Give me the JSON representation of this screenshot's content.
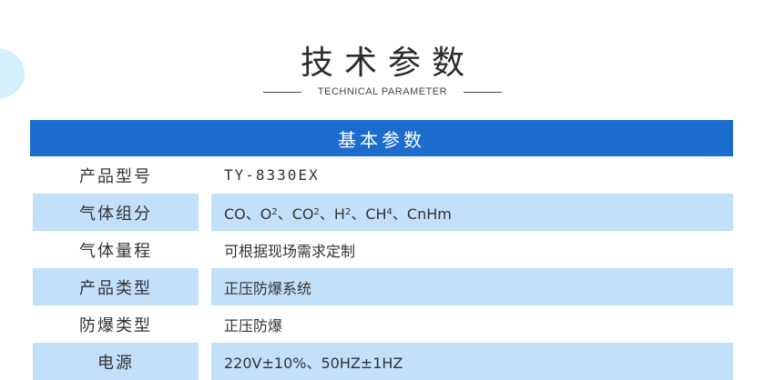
{
  "header": {
    "title": "技术参数",
    "subtitle": "TECHNICAL PARAMETER"
  },
  "table": {
    "section_title": "基本参数",
    "rows": [
      {
        "label": "产品型号",
        "value": "TY-8330EX"
      },
      {
        "label": "气体组分",
        "value": "CO、O2、CO2、H2、CH4、CnHm",
        "parts": [
          {
            "t": "CO、O"
          },
          {
            "s": "2"
          },
          {
            "t": "、CO"
          },
          {
            "s": "2"
          },
          {
            "t": "、H"
          },
          {
            "s": "2"
          },
          {
            "t": "、CH"
          },
          {
            "s": "4"
          },
          {
            "t": "、CnHm"
          }
        ]
      },
      {
        "label": "气体量程",
        "value": "可根据现场需求定制"
      },
      {
        "label": "产品类型",
        "value": "正压防爆系统"
      },
      {
        "label": "防爆类型",
        "value": "正压防爆"
      },
      {
        "label": "电源",
        "value": "220V±10%、50HZ±1HZ"
      }
    ]
  },
  "colors": {
    "header_bar": "#1b6ccd",
    "alt_row": "#c2e0fa",
    "decor_circle": "#d3effb"
  }
}
